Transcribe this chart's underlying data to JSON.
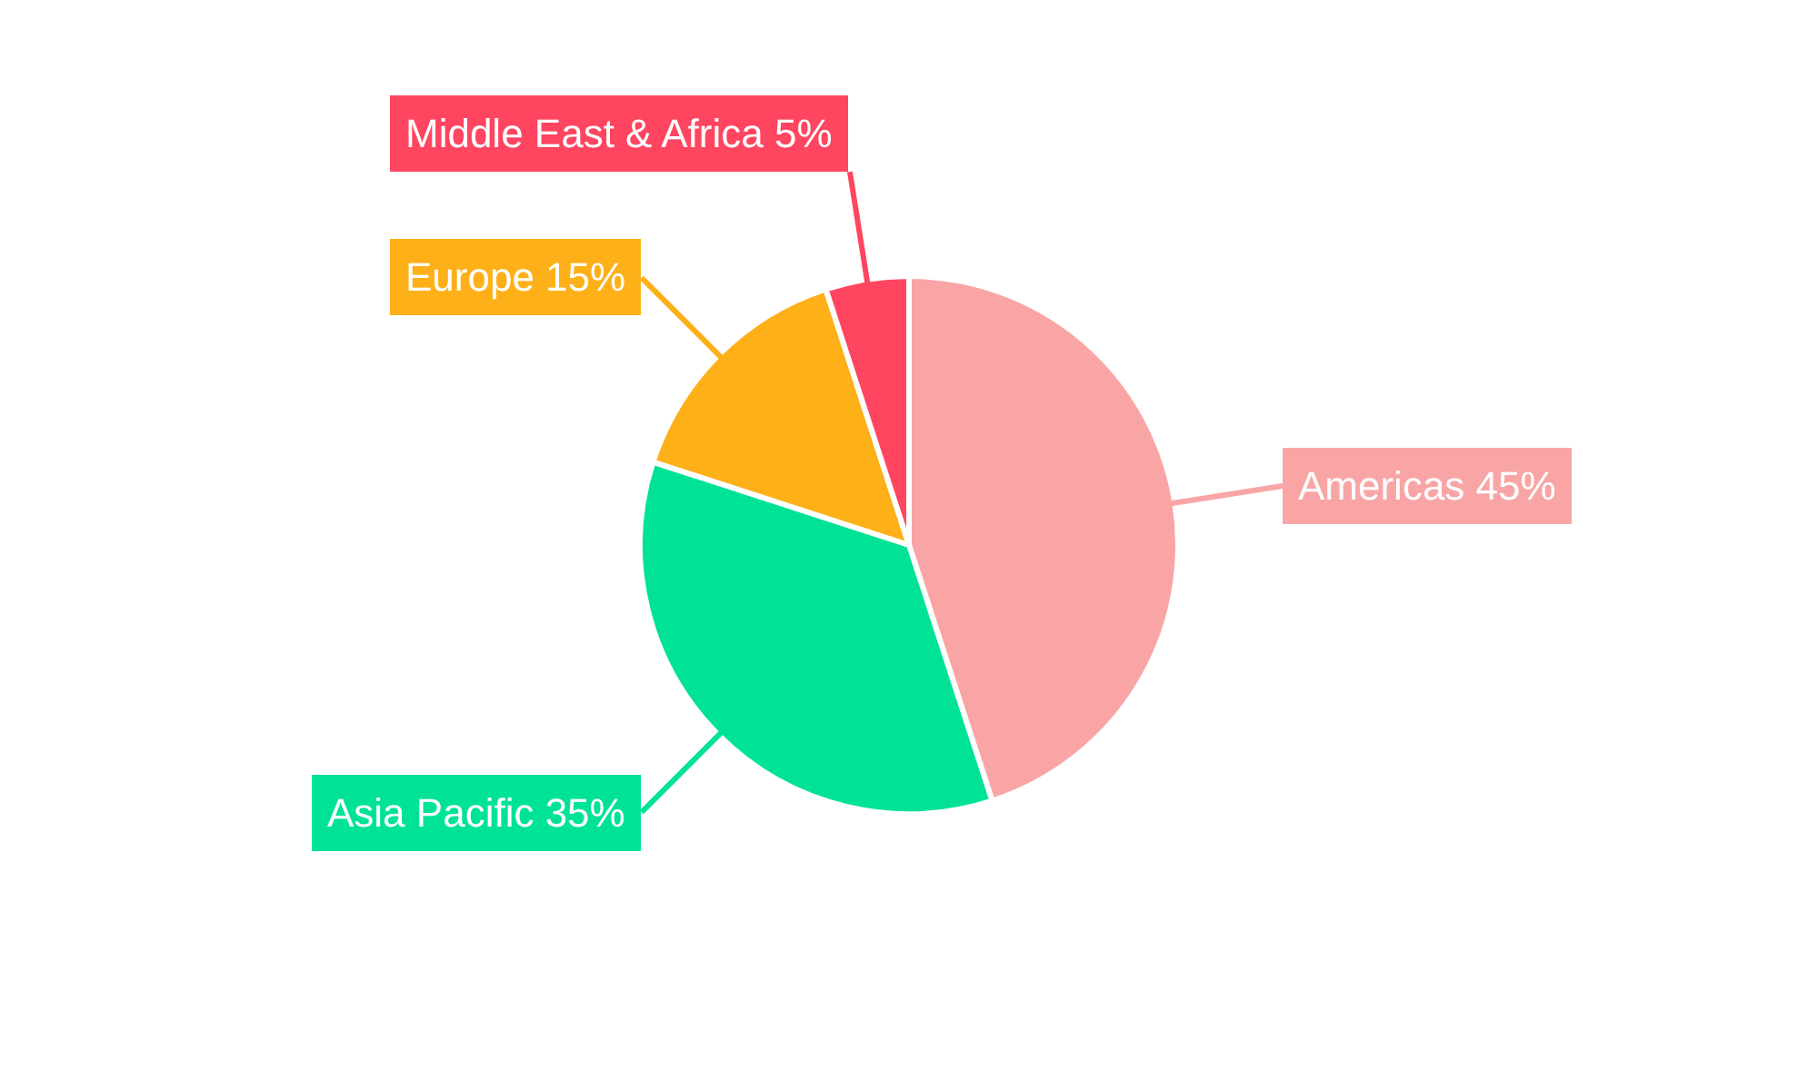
{
  "chart_data": {
    "type": "pie",
    "categories": [
      "Americas",
      "Asia Pacific",
      "Europe",
      "Middle East & Africa"
    ],
    "values": [
      45,
      35,
      15,
      5
    ],
    "colors": [
      "#f9a5a6",
      "#00e396",
      "#feb019",
      "#ff4560"
    ],
    "value_labels": [
      "45%",
      "35%",
      "15%",
      "5%"
    ]
  }
}
